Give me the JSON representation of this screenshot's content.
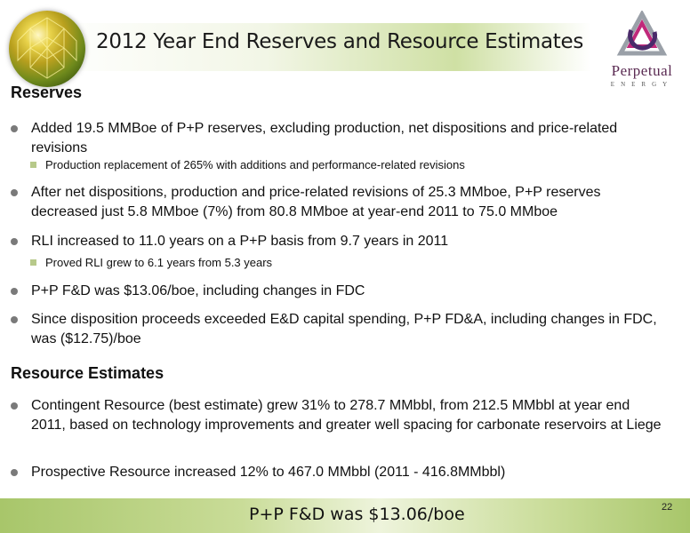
{
  "header": {
    "title": "2012 Year End Reserves and Resource Estimates",
    "logo_name": "Perpetual",
    "logo_sub": "ENERGY"
  },
  "sections": [
    {
      "heading": "Reserves",
      "bullets": [
        {
          "text": "Added 19.5 MMBoe of P+P reserves, excluding production, net dispositions and price-related revisions",
          "sub": [
            "Production replacement of 265% with additions and performance-related revisions"
          ]
        },
        {
          "text": "After net dispositions, production and price-related revisions of 25.3 MMboe, P+P reserves decreased just 5.8 MMboe (7%) from 80.8 MMboe at year-end 2011 to 75.0 MMboe"
        },
        {
          "text": " RLI increased to 11.0 years on a P+P basis from 9.7 years in 2011",
          "sub": [
            "Proved RLI grew to 6.1 years from 5.3 years"
          ]
        },
        {
          "text": "P+P F&D was $13.06/boe, including changes in FDC"
        },
        {
          "text": "Since disposition proceeds exceeded E&D capital spending, P+P FD&A, including changes in FDC, was ($12.75)/boe"
        }
      ]
    },
    {
      "heading": "Resource Estimates",
      "bullets": [
        {
          "text": "Contingent Resource (best estimate) grew 31% to 278.7 MMbbl, from 212.5 MMbbl at year end 2011, based on technology improvements and greater well spacing for carbonate reservoirs at Liege"
        },
        {
          "text": "Prospective Resource increased 12% to 467.0 MMbbl (2011 - 416.8MMbbl)"
        }
      ]
    }
  ],
  "footer": {
    "text": "P+P F&D was $13.06/boe",
    "page_number": "22"
  },
  "colors": {
    "accent_green": "#b7c98a",
    "logo_purple": "#5a2a52"
  }
}
